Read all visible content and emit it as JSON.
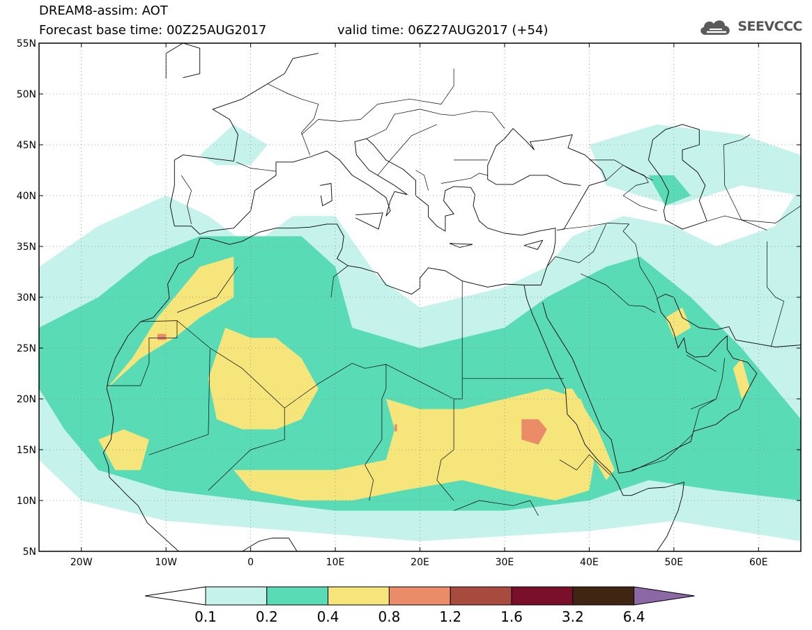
{
  "header": {
    "model_title": "DREAM8-assim: AOT",
    "base_time": "Forecast base time: 00Z25AUG2017",
    "valid_time": "valid time: 06Z27AUG2017 (+54)"
  },
  "logo": {
    "text": "SEEVCCC",
    "icon": "cloud-logo-icon",
    "color": "#5a5a5a"
  },
  "map": {
    "lon_range": [
      -25,
      65
    ],
    "lat_range": [
      5,
      55
    ],
    "lon_ticks": [
      {
        "value": -20,
        "label": "20W"
      },
      {
        "value": -10,
        "label": "10W"
      },
      {
        "value": 0,
        "label": "0"
      },
      {
        "value": 10,
        "label": "10E"
      },
      {
        "value": 20,
        "label": "20E"
      },
      {
        "value": 30,
        "label": "30E"
      },
      {
        "value": 40,
        "label": "40E"
      },
      {
        "value": 50,
        "label": "50E"
      },
      {
        "value": 60,
        "label": "60E"
      }
    ],
    "lat_ticks": [
      {
        "value": 5,
        "label": "5N"
      },
      {
        "value": 10,
        "label": "10N"
      },
      {
        "value": 15,
        "label": "15N"
      },
      {
        "value": 20,
        "label": "20N"
      },
      {
        "value": 25,
        "label": "25N"
      },
      {
        "value": 30,
        "label": "30N"
      },
      {
        "value": 35,
        "label": "35N"
      },
      {
        "value": 40,
        "label": "40N"
      },
      {
        "value": 45,
        "label": "45N"
      },
      {
        "value": 50,
        "label": "50N"
      },
      {
        "value": 55,
        "label": "55N"
      }
    ],
    "grid": "dotted"
  },
  "legend": {
    "labels": [
      "0.1",
      "0.2",
      "0.4",
      "0.8",
      "1.2",
      "1.6",
      "3.2",
      "6.4"
    ],
    "colors": {
      "below": "#ffffff",
      "bins": [
        "#c6f2ec",
        "#59dbb6",
        "#f5e57a",
        "#ea8c68",
        "#a74b3f",
        "#7a0f2b",
        "#3f2512"
      ],
      "above": "#8d68a6"
    }
  },
  "fields": {
    "aot_01": [
      [
        -25,
        33
      ],
      [
        -18,
        37
      ],
      [
        -10,
        40
      ],
      [
        -5,
        38
      ],
      [
        0,
        35
      ],
      [
        5,
        38
      ],
      [
        10,
        38
      ],
      [
        15,
        32
      ],
      [
        20,
        29
      ],
      [
        30,
        31
      ],
      [
        35,
        33
      ],
      [
        38,
        36
      ],
      [
        44,
        38
      ],
      [
        50,
        37
      ],
      [
        55,
        35
      ],
      [
        62,
        37
      ],
      [
        65,
        41
      ],
      [
        65,
        6
      ],
      [
        50,
        8
      ],
      [
        40,
        7
      ],
      [
        20,
        6
      ],
      [
        5,
        7
      ],
      [
        -10,
        8
      ],
      [
        -20,
        10
      ],
      [
        -25,
        14
      ]
    ],
    "aot_01_north": [
      [
        -6,
        44
      ],
      [
        -2,
        47
      ],
      [
        2,
        45
      ],
      [
        0,
        43
      ],
      [
        -4,
        43
      ]
    ],
    "aot_01_caspian": [
      [
        40,
        45
      ],
      [
        48,
        47
      ],
      [
        58,
        46
      ],
      [
        65,
        44
      ],
      [
        65,
        40
      ],
      [
        58,
        41
      ],
      [
        50,
        39
      ],
      [
        42,
        41
      ]
    ],
    "aot_02": [
      [
        -25,
        27
      ],
      [
        -18,
        30
      ],
      [
        -12,
        34
      ],
      [
        -6,
        36
      ],
      [
        0,
        36
      ],
      [
        6,
        36
      ],
      [
        10,
        33
      ],
      [
        12,
        27
      ],
      [
        20,
        25
      ],
      [
        30,
        27
      ],
      [
        35,
        30
      ],
      [
        42,
        33
      ],
      [
        46,
        34
      ],
      [
        52,
        30
      ],
      [
        58,
        25
      ],
      [
        60,
        23
      ],
      [
        65,
        18
      ],
      [
        65,
        10
      ],
      [
        55,
        11
      ],
      [
        47,
        12
      ],
      [
        40,
        10
      ],
      [
        30,
        9
      ],
      [
        20,
        9
      ],
      [
        10,
        9
      ],
      [
        0,
        10
      ],
      [
        -10,
        11
      ],
      [
        -18,
        13
      ],
      [
        -22,
        17
      ],
      [
        -25,
        21
      ]
    ],
    "aot_02_caspian": [
      [
        47,
        42
      ],
      [
        50,
        42
      ],
      [
        52,
        40
      ],
      [
        49,
        39
      ]
    ],
    "aot_04_west": [
      [
        -17,
        21
      ],
      [
        -14,
        24
      ],
      [
        -11,
        28
      ],
      [
        -8,
        31
      ],
      [
        -6,
        33
      ],
      [
        -2,
        34
      ],
      [
        -2,
        30
      ],
      [
        -6,
        28
      ],
      [
        -9,
        26
      ],
      [
        -13,
        24
      ]
    ],
    "aot_04_sahara": [
      [
        -3,
        27
      ],
      [
        0,
        26
      ],
      [
        3,
        26
      ],
      [
        6,
        24
      ],
      [
        8,
        21
      ],
      [
        6,
        18
      ],
      [
        3,
        17
      ],
      [
        -1,
        17
      ],
      [
        -4,
        18
      ],
      [
        -5,
        22
      ]
    ],
    "aot_04_senegal": [
      [
        -18,
        16
      ],
      [
        -15,
        17
      ],
      [
        -12,
        16
      ],
      [
        -13,
        13
      ],
      [
        -16,
        13
      ]
    ],
    "aot_04_chad": [
      [
        16,
        20
      ],
      [
        20,
        19
      ],
      [
        25,
        19
      ],
      [
        30,
        20
      ],
      [
        35,
        21
      ],
      [
        39,
        20
      ],
      [
        41,
        16
      ],
      [
        40,
        11
      ],
      [
        36,
        10
      ],
      [
        30,
        11
      ],
      [
        25,
        12
      ],
      [
        18,
        11
      ],
      [
        12,
        10
      ],
      [
        6,
        10
      ],
      [
        0,
        11
      ],
      [
        -2,
        13
      ],
      [
        3,
        13
      ],
      [
        10,
        13
      ],
      [
        16,
        14
      ],
      [
        17,
        17
      ]
    ],
    "aot_04_redsea": [
      [
        37,
        21
      ],
      [
        38,
        21
      ],
      [
        41,
        17
      ],
      [
        43,
        13
      ],
      [
        42,
        12
      ],
      [
        40,
        15
      ]
    ],
    "aot_04_oman": [
      [
        57,
        23
      ],
      [
        58,
        24
      ],
      [
        59,
        21
      ],
      [
        58,
        20
      ]
    ],
    "aot_04_gulf": [
      [
        49,
        28
      ],
      [
        51,
        29
      ],
      [
        52,
        27
      ],
      [
        50,
        26
      ]
    ],
    "aot_08_a": [
      [
        -11,
        26.4
      ],
      [
        -10,
        26.4
      ],
      [
        -10,
        25.8
      ],
      [
        -11,
        25.8
      ]
    ],
    "aot_08_b": [
      [
        32,
        18
      ],
      [
        34,
        18
      ],
      [
        35,
        17
      ],
      [
        34,
        15.5
      ],
      [
        32,
        16
      ]
    ],
    "aot_08_c": [
      [
        17,
        17.5
      ],
      [
        17.3,
        17.5
      ],
      [
        17.3,
        16.8
      ],
      [
        17,
        16.8
      ]
    ]
  }
}
